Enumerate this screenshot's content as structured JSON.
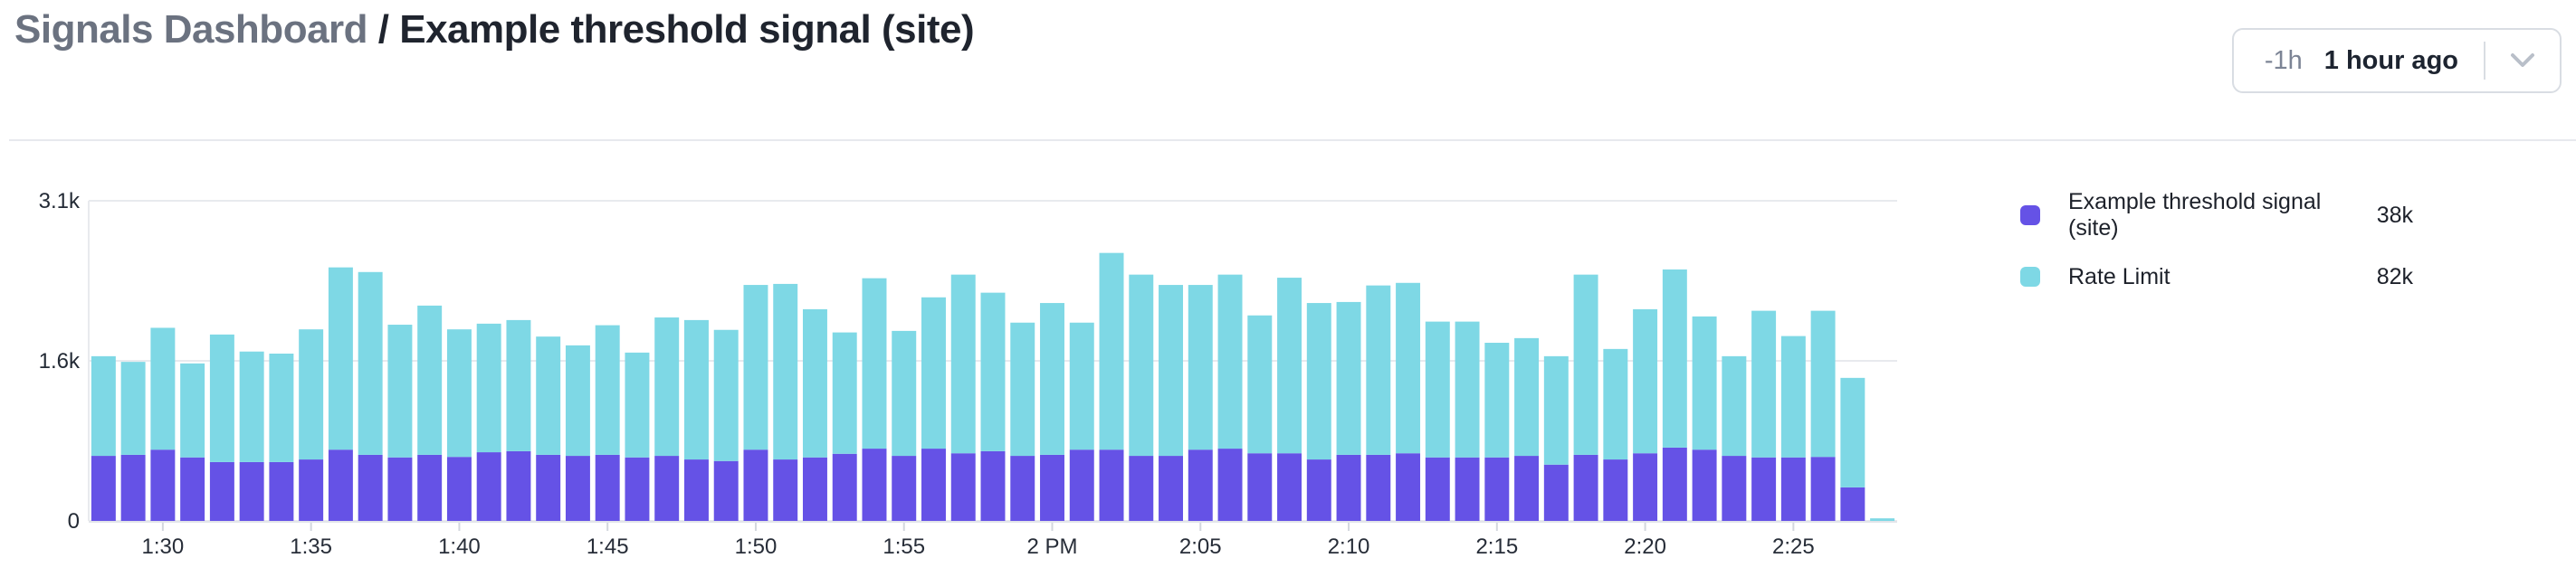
{
  "header": {
    "breadcrumb": "Signals Dashboard",
    "separator": " / ",
    "title": "Example threshold signal (site)",
    "time_picker": {
      "shorthand": "-1h",
      "label": "1 hour ago",
      "chevron_icon": "chevron-down"
    }
  },
  "legend": {
    "items": [
      {
        "label": "Example threshold signal (site)",
        "value": "38k",
        "color": "#6552e6"
      },
      {
        "label": "Rate Limit",
        "value": "82k",
        "color": "#7ed8e5"
      }
    ]
  },
  "chart_data": {
    "type": "bar",
    "stacked": true,
    "title": "",
    "xlabel": "",
    "ylabel": "",
    "ylim": [
      0,
      3100
    ],
    "grid": "horizontal",
    "legend_position": "right",
    "x": [
      "1:28",
      "1:29",
      "1:30",
      "1:31",
      "1:32",
      "1:33",
      "1:34",
      "1:35",
      "1:36",
      "1:37",
      "1:38",
      "1:39",
      "1:40",
      "1:41",
      "1:42",
      "1:43",
      "1:44",
      "1:45",
      "1:46",
      "1:47",
      "1:48",
      "1:49",
      "1:50",
      "1:51",
      "1:52",
      "1:53",
      "1:54",
      "1:55",
      "1:56",
      "1:57",
      "1:58",
      "1:59",
      "2:00",
      "2:01",
      "2:02",
      "2:03",
      "2:04",
      "2:05",
      "2:06",
      "2:07",
      "2:08",
      "2:09",
      "2:10",
      "2:11",
      "2:12",
      "2:13",
      "2:14",
      "2:15",
      "2:16",
      "2:17",
      "2:18",
      "2:19",
      "2:20",
      "2:21",
      "2:22",
      "2:23",
      "2:24",
      "2:25",
      "2:26",
      "2:27",
      "2:28"
    ],
    "series": [
      {
        "name": "Example threshold signal (site)",
        "color": "#6552e6",
        "total_label": "38k",
        "values": [
          630,
          640,
          690,
          615,
          570,
          570,
          570,
          595,
          690,
          640,
          615,
          640,
          620,
          665,
          675,
          640,
          630,
          640,
          615,
          630,
          595,
          580,
          690,
          595,
          615,
          650,
          700,
          630,
          700,
          655,
          675,
          630,
          640,
          690,
          690,
          630,
          630,
          690,
          700,
          655,
          655,
          595,
          640,
          640,
          655,
          615,
          615,
          615,
          630,
          545,
          640,
          595,
          655,
          710,
          690,
          630,
          615,
          615,
          620,
          325,
          0
        ]
      },
      {
        "name": "Rate Limit",
        "color": "#7ed8e5",
        "total_label": "82k",
        "values": [
          965,
          900,
          1180,
          910,
          1235,
          1070,
          1050,
          1260,
          1765,
          1770,
          1285,
          1445,
          1235,
          1245,
          1270,
          1145,
          1070,
          1255,
          1015,
          1340,
          1350,
          1270,
          1595,
          1700,
          1435,
          1175,
          1650,
          1210,
          1465,
          1730,
          1535,
          1290,
          1470,
          1230,
          1905,
          1755,
          1655,
          1595,
          1685,
          1335,
          1700,
          1515,
          1480,
          1640,
          1650,
          1315,
          1315,
          1110,
          1140,
          1050,
          1745,
          1070,
          1395,
          1725,
          1290,
          965,
          1420,
          1175,
          1415,
          1060,
          25
        ]
      }
    ],
    "x_tick_indices": [
      2,
      7,
      12,
      17,
      22,
      27,
      32,
      37,
      42,
      47,
      52,
      57
    ],
    "x_tick_labels": [
      "1:30",
      "1:35",
      "1:40",
      "1:45",
      "1:50",
      "1:55",
      "2 PM",
      "2:05",
      "2:10",
      "2:15",
      "2:20",
      "2:25"
    ],
    "y_ticks": [
      {
        "value": 0,
        "label": "0"
      },
      {
        "value": 1550,
        "label": "1.6k"
      },
      {
        "value": 3100,
        "label": "3.1k"
      }
    ]
  }
}
